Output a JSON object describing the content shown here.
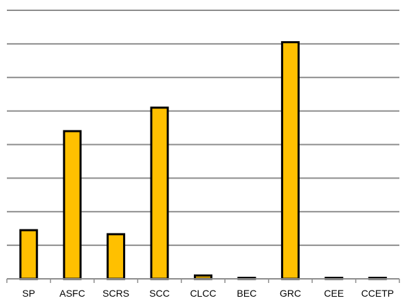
{
  "chart_data": {
    "type": "bar",
    "categories": [
      "SP",
      "ASFC",
      "SCRS",
      "SCC",
      "CLCC",
      "BEC",
      "GRC",
      "CEE",
      "CCETP"
    ],
    "values": [
      1.45,
      4.4,
      1.33,
      5.1,
      0.1,
      0.03,
      7.05,
      0.03,
      0.03
    ],
    "title": "",
    "xlabel": "",
    "ylabel": "",
    "ylim": [
      0,
      8
    ],
    "y_tick_step": 1,
    "grid": true,
    "legend": "none",
    "bar_color": "#FFC000",
    "bar_border_color": "#000000",
    "grid_color": "#8C8C8C"
  }
}
